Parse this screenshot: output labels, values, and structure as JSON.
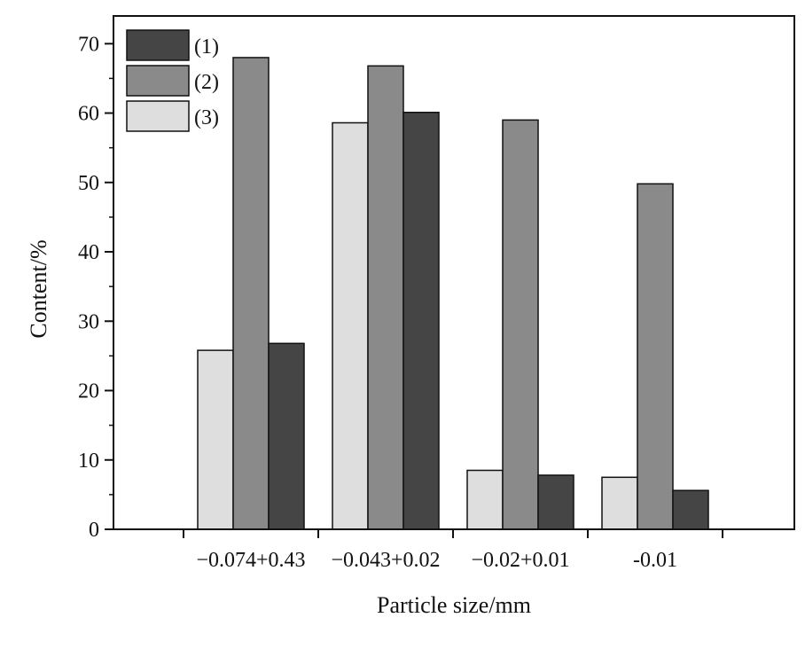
{
  "chart_data": {
    "type": "bar",
    "xlabel": "Particle size/mm",
    "ylabel": "Content/%",
    "ylim": [
      0,
      74
    ],
    "yticks": [
      0,
      10,
      20,
      30,
      40,
      50,
      60,
      70
    ],
    "categories": [
      "−0.074+0.43",
      "−0.043+0.02",
      "−0.02+0.01",
      "-0.01"
    ],
    "series": [
      {
        "name": "(3)",
        "color": "#dedede",
        "values": [
          25.8,
          58.6,
          8.5,
          7.5
        ]
      },
      {
        "name": "(2)",
        "color": "#8a8a8a",
        "values": [
          68.0,
          66.8,
          59.0,
          49.8
        ]
      },
      {
        "name": "(1)",
        "color": "#454545",
        "values": [
          26.8,
          60.1,
          7.8,
          5.6
        ]
      }
    ],
    "legend": {
      "placement": "top-left",
      "order": [
        "(1)",
        "(2)",
        "(3)"
      ]
    },
    "grid": false
  }
}
